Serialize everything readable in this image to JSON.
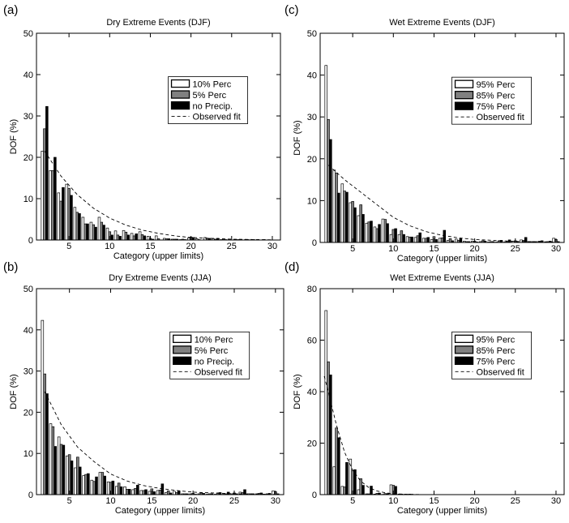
{
  "chart_data": [
    {
      "type": "bar",
      "panel_label": "(a)",
      "title": "Dry Extreme Events (DJF)",
      "xlabel": "Category (upper limits)",
      "ylabel": "DOF (%)",
      "xlim": [
        1,
        31
      ],
      "ylim": [
        0,
        50
      ],
      "xticks": [
        5,
        10,
        15,
        20,
        25,
        30
      ],
      "yticks": [
        0,
        10,
        20,
        30,
        40,
        50
      ],
      "legend_position": "center-right",
      "x": [
        2,
        3,
        4,
        5,
        6,
        7,
        8,
        9,
        10,
        11,
        12,
        13,
        14,
        15,
        16,
        17,
        18,
        19,
        20,
        21,
        22,
        23,
        24,
        25,
        26,
        27,
        28,
        29,
        30
      ],
      "series": [
        {
          "name": "10% Perc",
          "color": "#ffffff",
          "values": [
            21.5,
            16.8,
            11.4,
            13.5,
            7.9,
            5.5,
            4.3,
            5.5,
            2.9,
            2.2,
            2.3,
            1.6,
            2.0,
            0.9,
            1.0,
            0.4,
            0.2,
            0.1,
            0.5,
            0.3,
            0.6,
            0.3,
            0.1,
            0.1,
            0.1,
            0.1,
            0.1,
            0.0,
            0.0
          ]
        },
        {
          "name": "5% Perc",
          "color": "#808080",
          "values": [
            26.9,
            16.8,
            9.4,
            12.5,
            6.7,
            3.9,
            3.7,
            4.3,
            2.0,
            1.2,
            1.9,
            1.0,
            1.3,
            0.4,
            0.3,
            0.3,
            0.2,
            0.2,
            0.7,
            0.1,
            0.4,
            0.2,
            0.1,
            0.0,
            0.1,
            0.1,
            0.0,
            0.1,
            0.0
          ]
        },
        {
          "name": "no Precip.",
          "color": "#000000",
          "values": [
            32.3,
            20.0,
            12.7,
            10.8,
            6.4,
            3.9,
            3.1,
            3.6,
            1.2,
            0.9,
            1.2,
            1.5,
            1.0,
            0.2,
            0.0,
            0.3,
            0.2,
            0.1,
            0.6,
            0.0,
            0.4,
            0.4,
            0.1,
            0.0,
            0.0,
            0.0,
            0.0,
            0.0,
            0.0
          ]
        }
      ],
      "fit": {
        "name": "Observed fit",
        "style": "dashed",
        "x": [
          2,
          4,
          6,
          8,
          10,
          12,
          14,
          16,
          18,
          20,
          25,
          30
        ],
        "y": [
          21.5,
          15.5,
          11.0,
          7.7,
          5.3,
          3.6,
          2.4,
          1.6,
          1.0,
          0.6,
          0.2,
          0.05
        ]
      }
    },
    {
      "type": "bar",
      "panel_label": "(c)",
      "title": "Wet Extreme Events (DJF)",
      "xlabel": "Category (upper limits)",
      "ylabel": "DOF (%)",
      "xlim": [
        1,
        31
      ],
      "ylim": [
        0,
        50
      ],
      "xticks": [
        5,
        10,
        15,
        20,
        25,
        30
      ],
      "yticks": [
        0,
        10,
        20,
        30,
        40,
        50
      ],
      "legend_position": "center-right",
      "x": [
        2,
        3,
        4,
        5,
        6,
        7,
        8,
        9,
        10,
        11,
        12,
        13,
        14,
        15,
        16,
        17,
        18,
        19,
        20,
        21,
        22,
        23,
        24,
        25,
        26,
        27,
        28,
        29,
        30
      ],
      "series": [
        {
          "name": "95% Perc",
          "color": "#ffffff",
          "values": [
            42.3,
            17.3,
            14.0,
            9.5,
            6.4,
            4.6,
            3.7,
            5.6,
            1.9,
            1.9,
            1.4,
            1.2,
            1.0,
            0.7,
            1.0,
            0.5,
            0.8,
            0.3,
            0.3,
            0.2,
            0.1,
            0.1,
            0.1,
            0.3,
            0.6,
            0.2,
            0.2,
            0.1,
            1.0
          ]
        },
        {
          "name": "85% Perc",
          "color": "#808080",
          "values": [
            29.4,
            16.6,
            12.3,
            9.8,
            9.0,
            4.9,
            3.3,
            5.5,
            3.1,
            2.8,
            1.3,
            1.6,
            1.0,
            1.4,
            1.1,
            0.9,
            0.5,
            0.2,
            0.3,
            0.4,
            0.2,
            0.4,
            0.2,
            0.4,
            0.5,
            0.2,
            0.3,
            0.2,
            0.7
          ]
        },
        {
          "name": "75% Perc",
          "color": "#000000",
          "values": [
            24.6,
            11.8,
            12.0,
            8.3,
            6.7,
            5.1,
            4.3,
            4.5,
            3.3,
            1.9,
            1.3,
            2.3,
            1.2,
            0.7,
            2.9,
            0.4,
            0.9,
            0.2,
            0.1,
            0.3,
            0.2,
            0.5,
            0.6,
            0.2,
            1.2,
            0.2,
            0.4,
            0.3,
            0.2
          ]
        }
      ],
      "fit": {
        "name": "Observed fit",
        "style": "dashed",
        "x": [
          2,
          4,
          6,
          8,
          10,
          12,
          14,
          16,
          18,
          20,
          25,
          30
        ],
        "y": [
          18.5,
          15.0,
          12.0,
          9.0,
          6.0,
          4.0,
          2.6,
          1.7,
          1.1,
          0.7,
          0.25,
          0.1
        ]
      }
    },
    {
      "type": "bar",
      "panel_label": "(b)",
      "title": "Dry Extreme Events (JJA)",
      "xlabel": "Category (upper limits)",
      "ylabel": "DOF (%)",
      "xlim": [
        1,
        31
      ],
      "ylim": [
        0,
        50
      ],
      "xticks": [
        5,
        10,
        15,
        20,
        25,
        30
      ],
      "yticks": [
        0,
        10,
        20,
        30,
        40,
        50
      ],
      "legend_position": "center-right",
      "x": [
        2,
        3,
        4,
        5,
        6,
        7,
        8,
        9,
        10,
        11,
        12,
        13,
        14,
        15,
        16,
        17,
        18,
        19,
        20,
        21,
        22,
        23,
        24,
        25,
        26,
        27,
        28,
        29,
        30
      ],
      "series": [
        {
          "name": "10% Perc",
          "color": "#ffffff",
          "values": [
            42.3,
            17.2,
            14.0,
            9.4,
            6.5,
            4.6,
            3.5,
            5.4,
            3.1,
            2.0,
            1.9,
            1.2,
            1.0,
            0.8,
            1.0,
            0.5,
            0.8,
            0.2,
            0.2,
            0.2,
            0.1,
            0.1,
            0.1,
            0.2,
            0.6,
            0.2,
            0.2,
            0.1,
            0.9
          ]
        },
        {
          "name": "5% Perc",
          "color": "#808080",
          "values": [
            29.3,
            16.5,
            12.2,
            9.7,
            9.1,
            4.9,
            3.2,
            5.4,
            3.0,
            2.8,
            1.3,
            1.5,
            1.0,
            1.4,
            1.1,
            0.9,
            0.5,
            0.2,
            0.3,
            0.4,
            0.2,
            0.4,
            0.2,
            0.4,
            0.5,
            0.2,
            0.3,
            0.2,
            0.7
          ]
        },
        {
          "name": "no Precip.",
          "color": "#000000",
          "values": [
            24.5,
            11.7,
            12.0,
            8.2,
            6.7,
            5.1,
            4.3,
            4.5,
            3.3,
            1.9,
            1.3,
            2.3,
            1.2,
            0.7,
            2.6,
            0.4,
            0.9,
            0.2,
            0.1,
            0.3,
            0.2,
            0.5,
            0.6,
            0.2,
            1.2,
            0.2,
            0.4,
            0.3,
            0.2
          ]
        }
      ],
      "fit": {
        "name": "Observed fit",
        "style": "dashed",
        "x": [
          2,
          4,
          6,
          8,
          10,
          12,
          14,
          16,
          18,
          20,
          25,
          30
        ],
        "y": [
          25.0,
          17.0,
          11.5,
          8.0,
          5.0,
          3.3,
          2.2,
          1.5,
          1.0,
          0.6,
          0.2,
          0.05
        ]
      }
    },
    {
      "type": "bar",
      "panel_label": "(d)",
      "title": "Wet Extreme Events (JJA)",
      "xlabel": "Category (upper limits)",
      "ylabel": "DOF (%)",
      "xlim": [
        1,
        31
      ],
      "ylim": [
        0,
        80
      ],
      "xticks": [
        5,
        10,
        15,
        20,
        25,
        30
      ],
      "yticks": [
        0,
        20,
        40,
        60,
        80
      ],
      "legend_position": "center-right",
      "x": [
        2,
        3,
        4,
        5,
        6,
        7,
        8,
        9,
        10,
        11,
        12,
        13,
        14,
        15,
        16,
        17,
        18,
        19,
        20,
        21,
        22,
        23,
        24,
        25,
        26,
        27,
        28,
        29,
        30
      ],
      "series": [
        {
          "name": "95% Perc",
          "color": "#ffffff",
          "values": [
            71.5,
            10.8,
            3.2,
            13.8,
            1.9,
            0.3,
            0.2,
            0.1,
            3.8,
            0.2,
            0.1,
            0.0,
            0.0,
            0.0,
            0.0,
            0.0,
            0.0,
            0.0,
            0.0,
            0.0,
            0.0,
            0.0,
            0.0,
            0.0,
            0.0,
            0.0,
            0.0,
            0.0,
            0.0
          ]
        },
        {
          "name": "85% Perc",
          "color": "#808080",
          "values": [
            51.6,
            25.9,
            3.0,
            9.4,
            6.2,
            0.3,
            0.5,
            0.4,
            3.6,
            0.2,
            0.2,
            0.0,
            0.0,
            0.0,
            0.0,
            0.0,
            0.0,
            0.0,
            0.0,
            0.0,
            0.0,
            0.0,
            0.0,
            0.0,
            0.0,
            0.0,
            0.0,
            0.0,
            0.0
          ]
        },
        {
          "name": "75% Perc",
          "color": "#000000",
          "values": [
            46.5,
            22.1,
            12.5,
            9.7,
            3.6,
            3.3,
            0.6,
            0.4,
            3.2,
            0.1,
            0.1,
            0.0,
            0.0,
            0.0,
            0.0,
            0.0,
            0.0,
            0.0,
            0.0,
            0.0,
            0.0,
            0.0,
            0.0,
            0.0,
            0.0,
            0.0,
            0.0,
            0.0,
            0.0
          ]
        }
      ],
      "fit": {
        "name": "Observed fit",
        "style": "dashed",
        "x": [
          1.5,
          2,
          3,
          4,
          5,
          6,
          7,
          8,
          9,
          10,
          12,
          14
        ],
        "y": [
          46.0,
          40.0,
          27.0,
          16.5,
          9.5,
          5.2,
          2.7,
          1.4,
          0.7,
          0.3,
          0.1,
          0.0
        ]
      }
    }
  ]
}
